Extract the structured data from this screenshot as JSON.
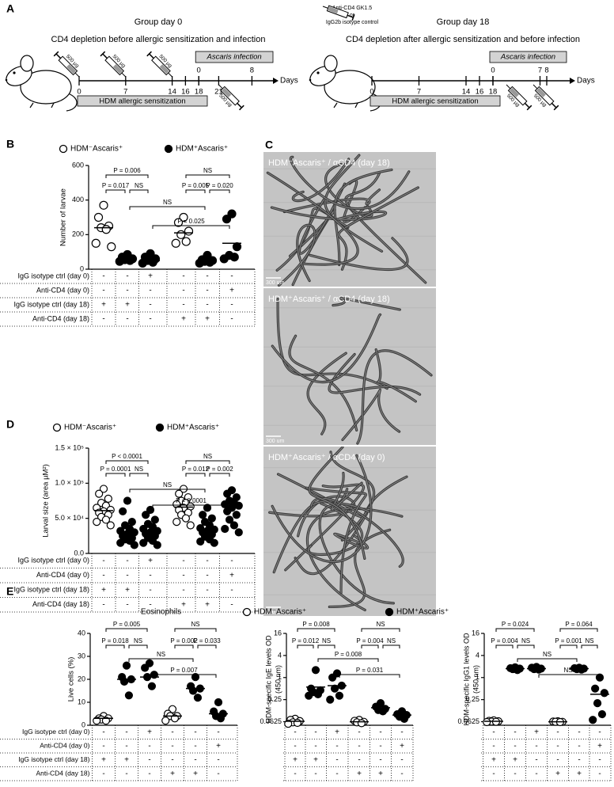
{
  "panel_a": {
    "label": "A",
    "injection": [
      "Anti-CD4 GK1.5",
      "or",
      "IgG2b isotype control"
    ],
    "groups": [
      {
        "title": "Group day 0",
        "subtitle": "CD4 depletion before allergic sensitization and infection",
        "dose": "500 µg",
        "day_labels": [
          0,
          7,
          14,
          16,
          18,
          21
        ],
        "infection": "Ascaris infection",
        "infection_labels": [
          0,
          8
        ],
        "sensitization": "HDM allergic sensitization",
        "axis": "Days"
      },
      {
        "title": "Group day 18",
        "subtitle": "CD4 depletion after allergic sensitization and before infection",
        "dose": "500 µg",
        "day_labels": [
          0,
          7,
          14,
          16,
          18
        ],
        "infection": "Ascaris infection",
        "infection_labels": [
          0,
          7,
          8
        ],
        "sensitization": "HDM allergic sensitization",
        "axis": "Days"
      }
    ]
  },
  "panel_c": {
    "label": "C",
    "images": [
      {
        "caption": "HDM⁻Ascaris⁺ / αCD4 (day 18)",
        "scale": "300 um"
      },
      {
        "caption": "HDM⁺Ascaris⁺ / αCD4 (day 18)",
        "scale": "300 um"
      },
      {
        "caption": "HDM⁺Ascaris⁺ / αCD4 (day 0)",
        "scale": "300 um"
      }
    ]
  },
  "chart_data": [
    {
      "type": "dot",
      "label": "B",
      "ylabel": "Number of larvae",
      "ylim": [
        0,
        600
      ],
      "yticks": [
        0,
        200,
        400,
        600
      ],
      "color": "#000000",
      "legend": [
        {
          "label": "HDM⁻Ascaris⁺",
          "fill": "open"
        },
        {
          "label": "HDM⁺Ascaris⁺",
          "fill": "filled"
        }
      ],
      "groups": [
        {
          "fill": "open",
          "values": [
            370,
            300,
            250,
            240,
            230,
            150,
            130
          ],
          "mean": 240
        },
        {
          "fill": "filled",
          "values": [
            85,
            70,
            60,
            55,
            50,
            45
          ],
          "mean": 60
        },
        {
          "fill": "filled",
          "values": [
            90,
            70,
            60,
            50,
            40,
            35
          ],
          "mean": 50
        },
        {
          "fill": "open",
          "values": [
            300,
            270,
            220,
            200,
            160,
            150
          ],
          "mean": 210
        },
        {
          "fill": "filled",
          "values": [
            80,
            55,
            50,
            45,
            40,
            35
          ],
          "mean": 50
        },
        {
          "fill": "filled",
          "values": [
            320,
            290,
            130,
            80,
            70,
            60
          ],
          "mean": 150
        }
      ],
      "comparisons": [
        {
          "groups": [
            0,
            2
          ],
          "label": "P = 0.006"
        },
        {
          "groups": [
            3,
            5
          ],
          "label": "NS"
        },
        {
          "groups": [
            0,
            1
          ],
          "label": "P = 0.017"
        },
        {
          "groups": [
            1,
            2
          ],
          "label": "NS"
        },
        {
          "groups": [
            3,
            4
          ],
          "label": "P = 0.005"
        },
        {
          "groups": [
            4,
            5
          ],
          "label": "P = 0.020"
        },
        {
          "groups": [
            1,
            4
          ],
          "label": "NS"
        },
        {
          "groups": [
            2,
            5
          ],
          "label": "P = 0.025"
        }
      ],
      "table": {
        "rows": [
          {
            "label": "IgG isotype ctrl (day 0)",
            "cells": [
              "-",
              "-",
              "+",
              "-",
              "-",
              "-"
            ]
          },
          {
            "label": "Anti-CD4 (day 0)",
            "cells": [
              "-",
              "-",
              "-",
              "-",
              "-",
              "+"
            ]
          },
          {
            "label": "IgG isotype ctrl (day 18)",
            "cells": [
              "+",
              "+",
              "-",
              "-",
              "-",
              "-"
            ]
          },
          {
            "label": "Anti-CD4 (day 18)",
            "cells": [
              "-",
              "-",
              "-",
              "+",
              "+",
              "-"
            ]
          }
        ]
      }
    },
    {
      "type": "dot",
      "label": "D",
      "ylabel": "Larval size (area µM²)",
      "ylim": [
        0,
        150000
      ],
      "yticks": [
        {
          "value": 0,
          "label": "0.0"
        },
        {
          "value": 50000,
          "label": "5.0 × 10⁴"
        },
        {
          "value": 100000,
          "label": "1.0 × 10⁵"
        },
        {
          "value": 150000,
          "label": "1.5 × 10⁵"
        }
      ],
      "color": "#000000",
      "legend": [
        {
          "label": "HDM⁻Ascaris⁺",
          "fill": "open"
        },
        {
          "label": "HDM⁺Ascaris⁺",
          "fill": "filled"
        }
      ],
      "groups": [
        {
          "fill": "open",
          "values": [
            92000,
            85000,
            78000,
            72000,
            68000,
            65000,
            62000,
            60000,
            58000,
            55000,
            52000,
            48000,
            45000,
            40000
          ],
          "mean": 61000
        },
        {
          "fill": "filled",
          "values": [
            75000,
            60000,
            45000,
            40000,
            35000,
            32000,
            30000,
            28000,
            25000,
            22000,
            20000,
            18000,
            15000,
            12000
          ],
          "mean": 31000
        },
        {
          "fill": "filled",
          "values": [
            62000,
            55000,
            48000,
            42000,
            38000,
            35000,
            32000,
            30000,
            28000,
            25000,
            22000,
            18000,
            15000,
            12000
          ],
          "mean": 33000
        },
        {
          "fill": "open",
          "values": [
            92000,
            85000,
            80000,
            75000,
            72000,
            70000,
            67000,
            65000,
            62000,
            58000,
            55000,
            50000,
            45000,
            40000
          ],
          "mean": 66000
        },
        {
          "fill": "filled",
          "values": [
            65000,
            55000,
            50000,
            45000,
            40000,
            36000,
            34000,
            32000,
            30000,
            27000,
            24000,
            20000,
            17000,
            15000
          ],
          "mean": 34000
        },
        {
          "fill": "filled",
          "values": [
            90000,
            85000,
            80000,
            75000,
            72000,
            70000,
            68000,
            65000,
            60000,
            55000,
            48000,
            40000,
            35000,
            30000
          ],
          "mean": 66000
        }
      ],
      "comparisons": [
        {
          "groups": [
            0,
            2
          ],
          "label": "P < 0.0001"
        },
        {
          "groups": [
            3,
            5
          ],
          "label": "NS"
        },
        {
          "groups": [
            0,
            1
          ],
          "label": "P = 0.0001"
        },
        {
          "groups": [
            1,
            2
          ],
          "label": "NS"
        },
        {
          "groups": [
            3,
            4
          ],
          "label": "P = 0.012"
        },
        {
          "groups": [
            4,
            5
          ],
          "label": "P = 0.002"
        },
        {
          "groups": [
            1,
            4
          ],
          "label": "NS"
        },
        {
          "groups": [
            2,
            5
          ],
          "label": "P = 0.0001"
        }
      ],
      "table": {
        "rows": [
          {
            "label": "IgG isotype ctrl (day 0)",
            "cells": [
              "-",
              "-",
              "+",
              "-",
              "-",
              "-"
            ]
          },
          {
            "label": "Anti-CD4 (day 0)",
            "cells": [
              "-",
              "-",
              "-",
              "-",
              "-",
              "+"
            ]
          },
          {
            "label": "IgG isotype ctrl (day 18)",
            "cells": [
              "+",
              "+",
              "-",
              "-",
              "-",
              "-"
            ]
          },
          {
            "label": "Anti-CD4 (day 18)",
            "cells": [
              "-",
              "-",
              "-",
              "+",
              "+",
              "-"
            ]
          }
        ]
      }
    },
    {
      "type": "dot",
      "label": "E",
      "title": "Eosinophils",
      "ylabel": "Live cells (%)",
      "ylim": [
        0,
        40
      ],
      "yticks": [
        0,
        10,
        20,
        30,
        40
      ],
      "color": "#000000",
      "legend": [
        {
          "label": "HDM⁻Ascaris⁺",
          "fill": "open"
        },
        {
          "label": "HDM⁺Ascaris⁺",
          "fill": "filled"
        }
      ],
      "groups": [
        {
          "fill": "open",
          "values": [
            4,
            3,
            3,
            2.5,
            2,
            2
          ],
          "mean": 3
        },
        {
          "fill": "filled",
          "values": [
            26,
            21,
            20,
            19,
            13
          ],
          "mean": 20
        },
        {
          "fill": "filled",
          "values": [
            27,
            25,
            22,
            21,
            17
          ],
          "mean": 21
        },
        {
          "fill": "open",
          "values": [
            7,
            5,
            4,
            4,
            3,
            2
          ],
          "mean": 4
        },
        {
          "fill": "filled",
          "values": [
            21,
            17,
            16,
            15,
            12
          ],
          "mean": 16
        },
        {
          "fill": "filled",
          "values": [
            10,
            6,
            5,
            4,
            3
          ],
          "mean": 5
        }
      ],
      "comparisons": [
        {
          "groups": [
            0,
            2
          ],
          "label": "P = 0.005"
        },
        {
          "groups": [
            3,
            5
          ],
          "label": "NS"
        },
        {
          "groups": [
            0,
            1
          ],
          "label": "P = 0.018"
        },
        {
          "groups": [
            1,
            2
          ],
          "label": "NS"
        },
        {
          "groups": [
            3,
            4
          ],
          "label": "P = 0.002"
        },
        {
          "groups": [
            4,
            5
          ],
          "label": "P = 0.033"
        },
        {
          "groups": [
            1,
            4
          ],
          "label": "NS"
        },
        {
          "groups": [
            2,
            5
          ],
          "label": "P = 0.007"
        }
      ],
      "table": {
        "rows": [
          {
            "label": "IgG isotype ctrl (day 0)",
            "cells": [
              "-",
              "-",
              "+",
              "-",
              "-",
              "-"
            ]
          },
          {
            "label": "Anti-CD4 (day 0)",
            "cells": [
              "-",
              "-",
              "-",
              "-",
              "-",
              "+"
            ]
          },
          {
            "label": "IgG isotype ctrl (day 18)",
            "cells": [
              "+",
              "+",
              "-",
              "-",
              "-",
              "-"
            ]
          },
          {
            "label": "Anti-CD4 (day 18)",
            "cells": [
              "-",
              "-",
              "-",
              "+",
              "+",
              "-"
            ]
          }
        ]
      }
    },
    {
      "type": "dot",
      "ylabel": [
        "HDM-specific IgE levels OD",
        "(450 nm)"
      ],
      "log": 2,
      "ylim": [
        0.05,
        16
      ],
      "yticks": [
        0.0625,
        0.25,
        1,
        4,
        16
      ],
      "color": "#000000",
      "groups": [
        {
          "fill": "open",
          "values": [
            0.075,
            0.07,
            0.065,
            0.06,
            0.058,
            0.055
          ],
          "mean": 0.064
        },
        {
          "fill": "filled",
          "values": [
            1.6,
            0.5,
            0.45,
            0.4,
            0.35,
            0.32
          ],
          "mean": 0.55
        },
        {
          "fill": "filled",
          "values": [
            1.3,
            1.0,
            0.6,
            0.5,
            0.32,
            0.25
          ],
          "mean": 0.6
        },
        {
          "fill": "open",
          "values": [
            0.07,
            0.066,
            0.062,
            0.06,
            0.057
          ],
          "mean": 0.062
        },
        {
          "fill": "filled",
          "values": [
            0.2,
            0.16,
            0.14,
            0.13,
            0.12
          ],
          "mean": 0.15
        },
        {
          "fill": "filled",
          "values": [
            0.12,
            0.1,
            0.095,
            0.085,
            0.075
          ],
          "mean": 0.095
        }
      ],
      "comparisons": [
        {
          "groups": [
            0,
            2
          ],
          "label": "P = 0.008"
        },
        {
          "groups": [
            3,
            5
          ],
          "label": "NS"
        },
        {
          "groups": [
            0,
            1
          ],
          "label": "P = 0.012"
        },
        {
          "groups": [
            1,
            2
          ],
          "label": "NS"
        },
        {
          "groups": [
            3,
            4
          ],
          "label": "P = 0.004"
        },
        {
          "groups": [
            4,
            5
          ],
          "label": "NS"
        },
        {
          "groups": [
            1,
            4
          ],
          "label": "P = 0.008"
        },
        {
          "groups": [
            2,
            5
          ],
          "label": "P = 0.031"
        }
      ],
      "table": {
        "rows": [
          {
            "cells": [
              "-",
              "-",
              "+",
              "-",
              "-",
              "-"
            ]
          },
          {
            "cells": [
              "-",
              "-",
              "-",
              "-",
              "-",
              "+"
            ]
          },
          {
            "cells": [
              "+",
              "+",
              "-",
              "-",
              "-",
              "-"
            ]
          },
          {
            "cells": [
              "-",
              "-",
              "-",
              "+",
              "+",
              "-"
            ]
          }
        ]
      }
    },
    {
      "type": "dot",
      "ylabel": [
        "HDM-specific IgG1 levels OD",
        "(450 nm)"
      ],
      "log": 2,
      "ylim": [
        0.05,
        16
      ],
      "yticks": [
        0.0625,
        0.25,
        1,
        4,
        16
      ],
      "color": "#000000",
      "groups": [
        {
          "fill": "open",
          "values": [
            0.068,
            0.066,
            0.064,
            0.063,
            0.062,
            0.061
          ],
          "mean": 0.064
        },
        {
          "fill": "filled",
          "values": [
            1.9,
            1.8,
            1.75,
            1.7,
            1.6
          ],
          "mean": 1.75
        },
        {
          "fill": "filled",
          "values": [
            1.95,
            1.85,
            1.75,
            1.7,
            1.65
          ],
          "mean": 1.75
        },
        {
          "fill": "open",
          "values": [
            0.064,
            0.063,
            0.062,
            0.062,
            0.061
          ],
          "mean": 0.062
        },
        {
          "fill": "filled",
          "values": [
            1.85,
            1.8,
            1.75,
            1.7,
            1.65
          ],
          "mean": 1.75
        },
        {
          "fill": "filled",
          "values": [
            1.0,
            0.5,
            0.38,
            0.2,
            0.1,
            0.07
          ],
          "mean": 0.35
        }
      ],
      "comparisons": [
        {
          "groups": [
            0,
            2
          ],
          "label": "P = 0.024"
        },
        {
          "groups": [
            3,
            5
          ],
          "label": "P = 0.064"
        },
        {
          "groups": [
            0,
            1
          ],
          "label": "P = 0.004"
        },
        {
          "groups": [
            1,
            2
          ],
          "label": "NS"
        },
        {
          "groups": [
            3,
            4
          ],
          "label": "P = 0.001"
        },
        {
          "groups": [
            4,
            5
          ],
          "label": "NS"
        },
        {
          "groups": [
            1,
            4
          ],
          "label": "NS"
        },
        {
          "groups": [
            2,
            5
          ],
          "label": "NS"
        }
      ],
      "table": {
        "rows": [
          {
            "cells": [
              "-",
              "-",
              "+",
              "-",
              "-",
              "-"
            ]
          },
          {
            "cells": [
              "-",
              "-",
              "-",
              "-",
              "-",
              "+"
            ]
          },
          {
            "cells": [
              "+",
              "+",
              "-",
              "-",
              "-",
              "-"
            ]
          },
          {
            "cells": [
              "-",
              "-",
              "-",
              "+",
              "+",
              "-"
            ]
          }
        ]
      }
    }
  ]
}
